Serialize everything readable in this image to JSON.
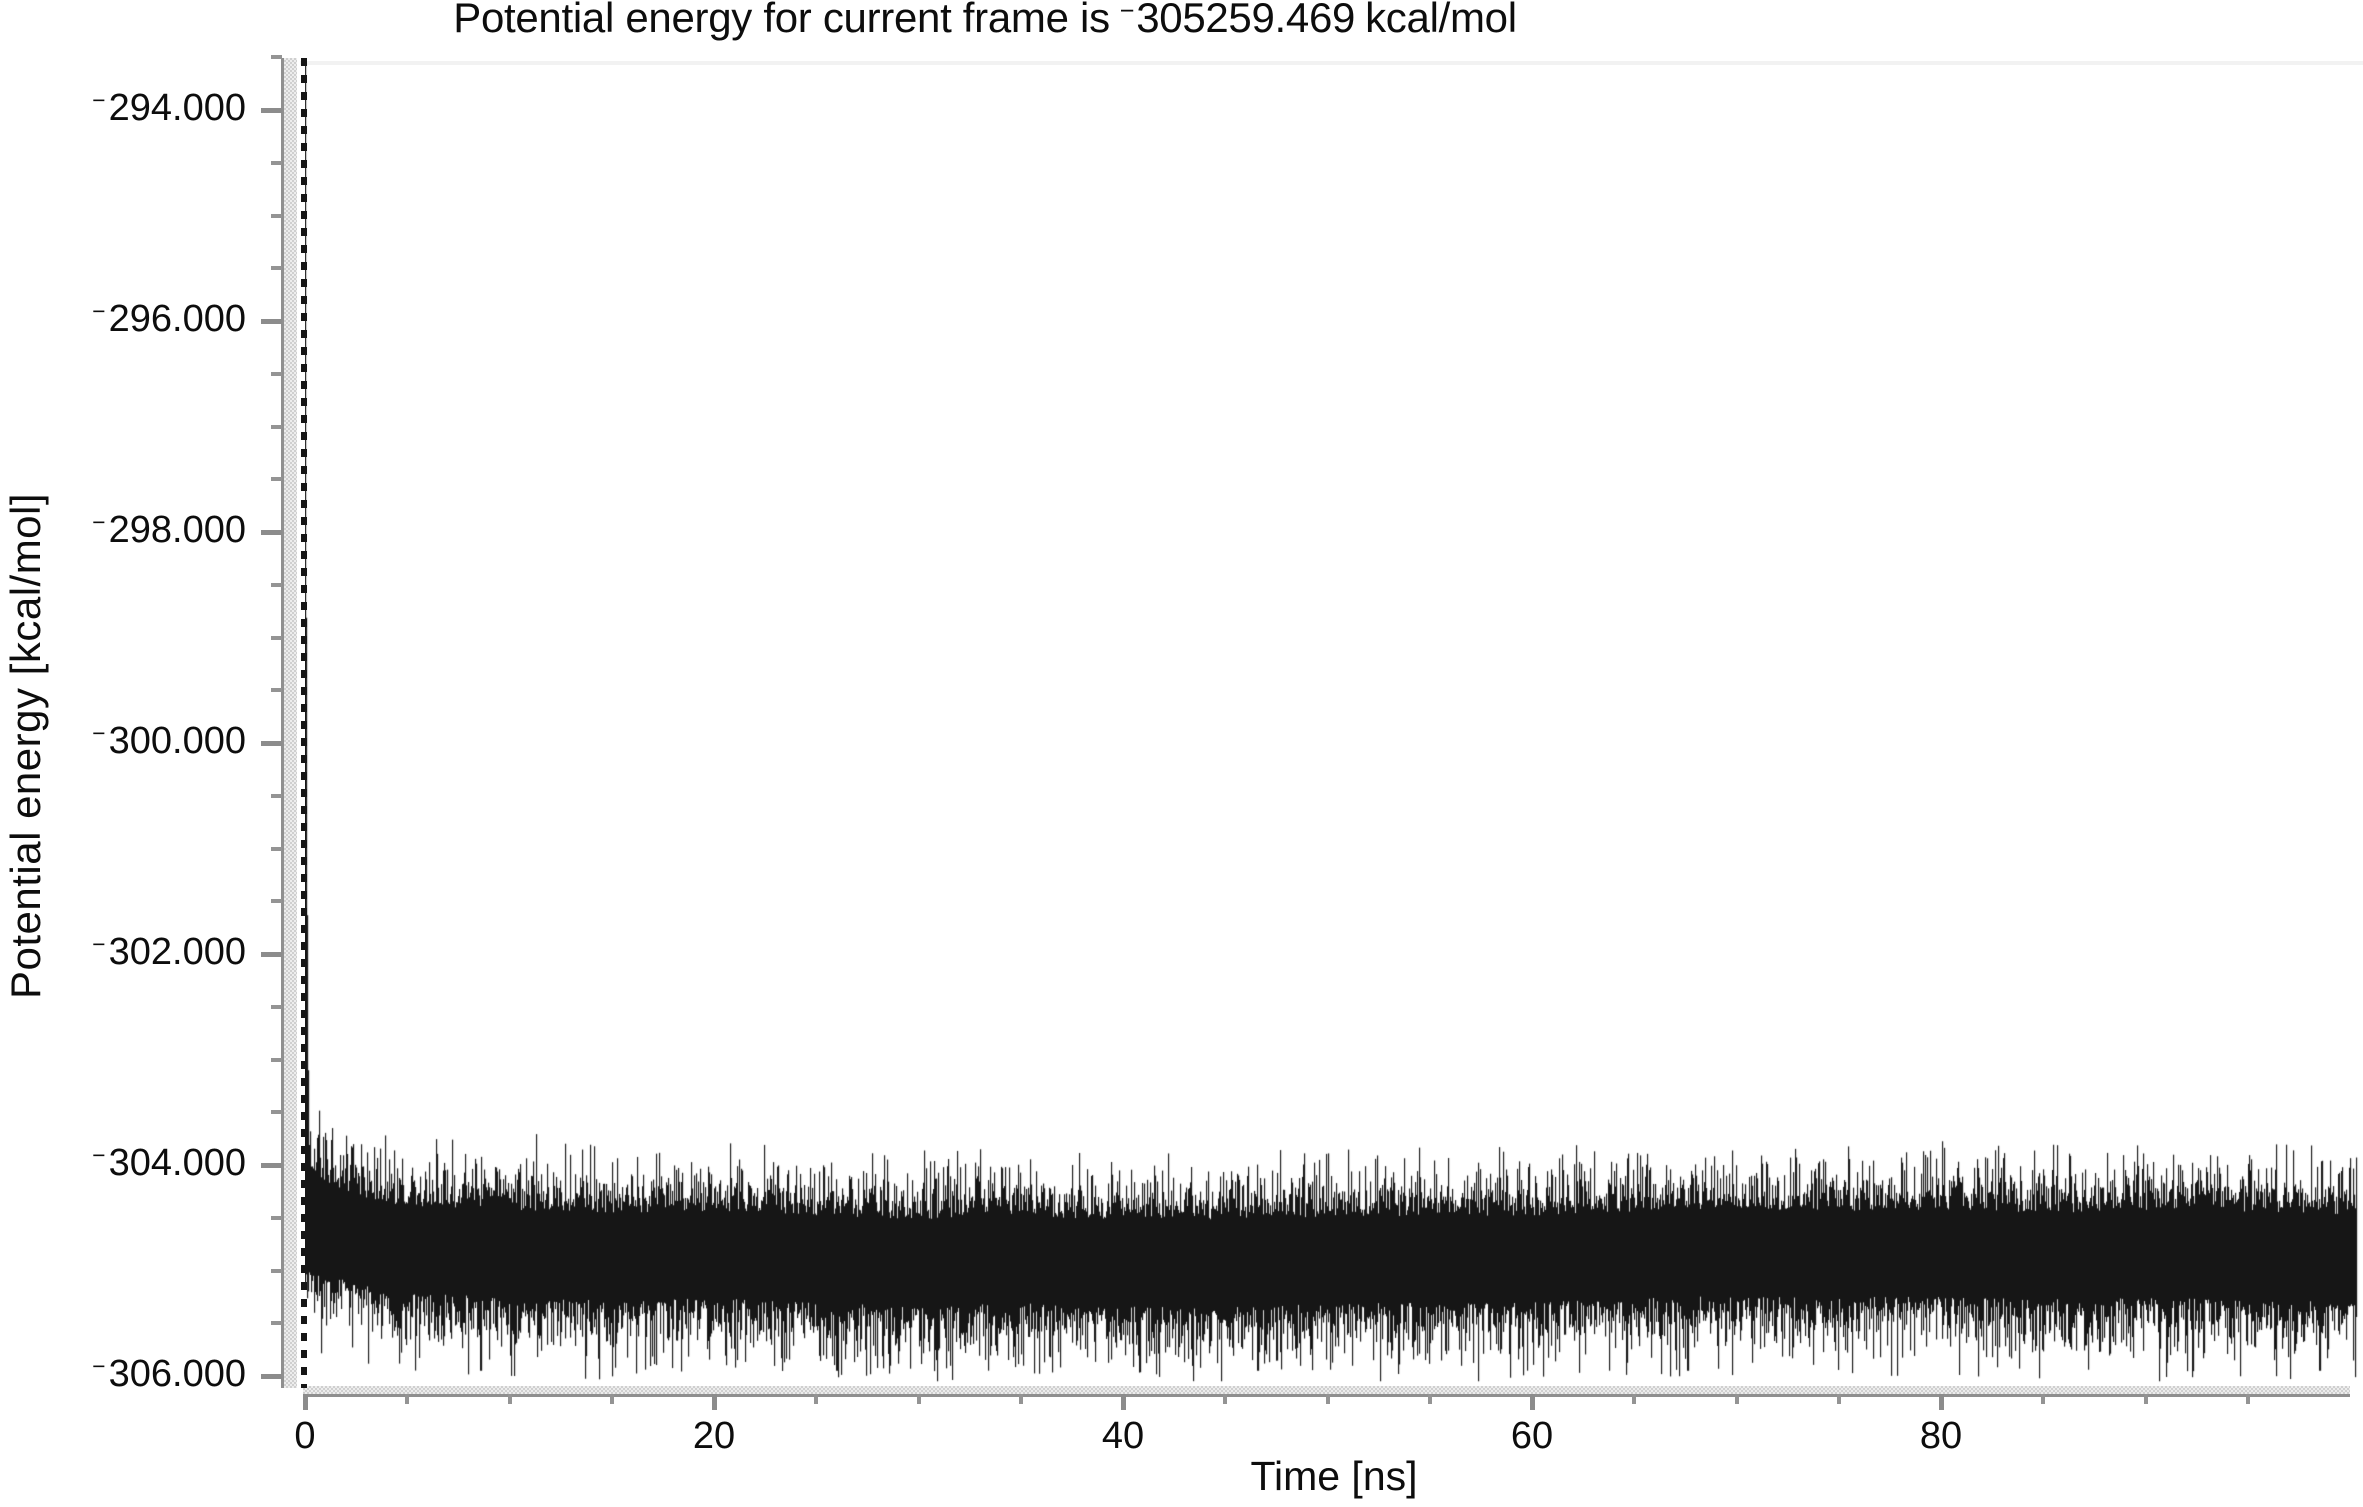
{
  "chart_data": {
    "type": "line",
    "title": "Potential energy for current frame is −305259.469 kcal/mol",
    "title_parts": {
      "prefix": "Potential energy for current frame is",
      "minus": "−",
      "value": "305259.469",
      "suffix": "kcal/mol"
    },
    "xlabel": "Time [ns]",
    "ylabel": "Potential energy [kcal/mol]",
    "x_axis": {
      "tick_values": [
        0,
        20,
        40,
        60,
        80
      ],
      "tick_labels": [
        "0",
        "20",
        "40",
        "60",
        "80"
      ],
      "minor_tick_interval_ns": 5,
      "minor_tick_max_ns": 95,
      "range_ns": [
        0,
        100.3
      ],
      "grid": false
    },
    "y_axis": {
      "tick_values": [
        -294,
        -296,
        -298,
        -300,
        -302,
        -304,
        -306
      ],
      "tick_labels": [
        "−294.000",
        "−296.000",
        "−298.000",
        "−300.000",
        "−302.000",
        "−304.000",
        "−306.000"
      ],
      "minor_tick_interval": 0.5,
      "unit_multiplier": 1000,
      "visible_range": [
        -306.11,
        -293.55
      ],
      "grid": false
    },
    "legend": "none",
    "current_frame": {
      "energy_value": -305259.469,
      "energy_text": "−305259.469 kcal/mol",
      "marker_time_ns": 0
    },
    "series": [
      {
        "name": "potential_energy",
        "color": "#161616",
        "sample_means_t_ns": [
          0,
          5,
          10,
          15,
          20,
          25,
          30,
          35,
          40,
          45,
          50,
          55,
          60,
          65,
          70,
          75,
          80,
          85,
          90,
          95,
          100
        ],
        "sample_means": [
          -304.62,
          -304.84,
          -304.87,
          -304.9,
          -304.86,
          -304.89,
          -304.91,
          -304.88,
          -304.9,
          -304.92,
          -304.89,
          -304.9,
          -304.91,
          -304.89,
          -304.88,
          -304.9,
          -304.89,
          -304.91,
          -304.88,
          -304.87,
          -304.88
        ],
        "equilibrium": {
          "mean": -304.88,
          "band_top_typical": -304.2,
          "band_bottom_typical": -305.5,
          "max": -303.4,
          "min": -306.0
        },
        "transient": {
          "initial_value": -293.5,
          "clipped_at_plot_top": true,
          "settles_to": -304.7,
          "decay_tau_ns": 0.075,
          "duration_ns": 0.9
        },
        "notable_dips_t_ns": [
          8.6,
          26.0,
          46.6,
          67.6,
          98.5
        ],
        "notable_dip_value": -305.95
      }
    ]
  }
}
